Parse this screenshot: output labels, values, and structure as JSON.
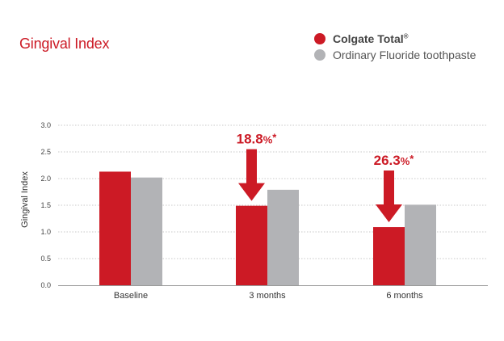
{
  "colors": {
    "accent": "#cc1a25",
    "secondary": "#b2b3b6",
    "grid": "#c8c8c8"
  },
  "chart_data": {
    "type": "bar",
    "title": "Gingival Index",
    "xlabel": "",
    "ylabel": "Gingival Index",
    "categories": [
      "Baseline",
      "3 months",
      "6 months"
    ],
    "series": [
      {
        "name": "Colgate Total",
        "name_mark": "®",
        "color": "#cc1a25",
        "values": [
          2.13,
          1.49,
          1.09
        ]
      },
      {
        "name": "Ordinary Fluoride toothpaste",
        "color": "#b2b3b6",
        "values": [
          2.02,
          1.79,
          1.51
        ]
      }
    ],
    "ylim": [
      0,
      3.0
    ],
    "yticks": [
      "0.0",
      "0.5",
      "1.0",
      "1.5",
      "2.0",
      "2.5",
      "3.0"
    ],
    "grid": true,
    "legend_position": "top-right",
    "annotations": [
      {
        "category": "3 months",
        "value": "18.8",
        "unit": "%",
        "mark": "*"
      },
      {
        "category": "6 months",
        "value": "26.3",
        "unit": "%",
        "mark": "*"
      }
    ]
  }
}
